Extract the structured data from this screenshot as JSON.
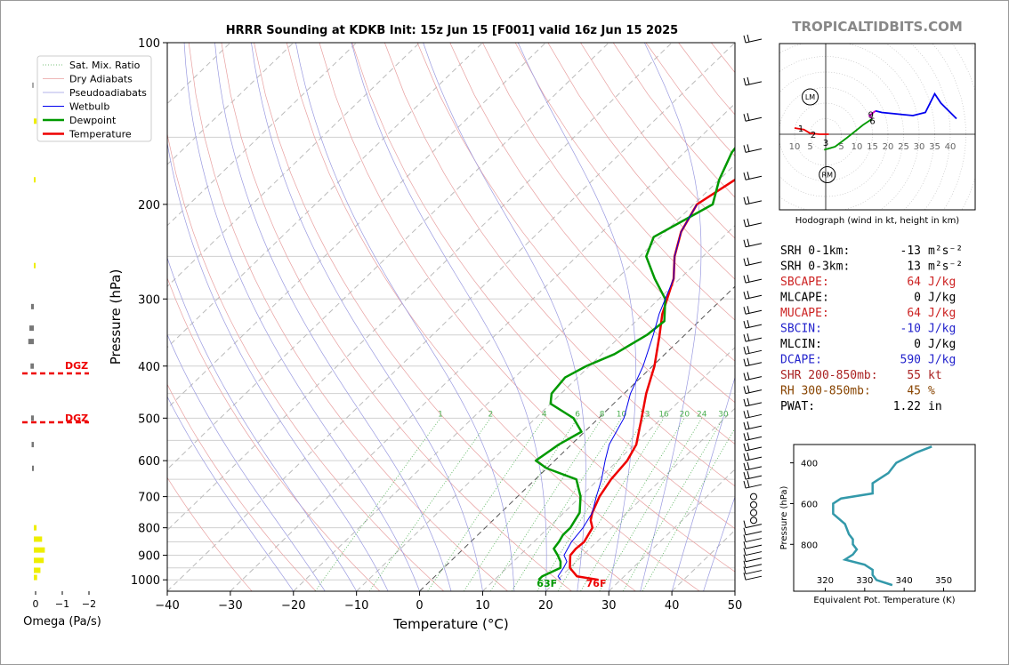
{
  "title": "HRRR Sounding at KDKB Init: 15z Jun 15 [F001] valid 16z Jun 15 2025",
  "watermark": "TROPICALTIDBITS.COM",
  "chart_data": [
    {
      "type": "line",
      "name": "skew-t",
      "xlabel": "Temperature (°C)",
      "ylabel": "Pressure (hPa)",
      "xlim": [
        -40,
        50
      ],
      "ylim": [
        1050,
        100
      ],
      "y_scale": "log",
      "xticks": [
        "−40",
        "−30",
        "−20",
        "−10",
        "0",
        "10",
        "20",
        "30",
        "40",
        "50"
      ],
      "yticks": [
        "100",
        "200",
        "300",
        "400",
        "500",
        "600",
        "700",
        "800",
        "900",
        "1000"
      ],
      "legend_position": "top-left",
      "legend": [
        "Sat. Mix. Ratio",
        "Dry Adiabats",
        "Pseudoadiabats",
        "Wetbulb",
        "Dewpoint",
        "Temperature"
      ],
      "mixing_ratio_labels": [
        "1",
        "2",
        "4",
        "6",
        "8",
        "10",
        "13",
        "16",
        "20",
        "24",
        "30",
        "36"
      ],
      "surface_temperature_label": "76F",
      "surface_dewpoint_label": "63F",
      "series": [
        {
          "name": "Temperature",
          "color": "#ee0000",
          "points": [
            [
              1000,
              26.5
            ],
            [
              985,
              22.5
            ],
            [
              950,
              20
            ],
            [
              925,
              19
            ],
            [
              900,
              18
            ],
            [
              875,
              17.8
            ],
            [
              850,
              18
            ],
            [
              825,
              17.5
            ],
            [
              800,
              17
            ],
            [
              775,
              15.5
            ],
            [
              750,
              14.5
            ],
            [
              700,
              13
            ],
            [
              650,
              12
            ],
            [
              600,
              11.5
            ],
            [
              560,
              10.3
            ],
            [
              500,
              6.8
            ],
            [
              450,
              3.5
            ],
            [
              400,
              0.3
            ],
            [
              350,
              -4
            ],
            [
              320,
              -7
            ],
            [
              300,
              -8.7
            ],
            [
              275,
              -11
            ],
            [
              250,
              -14.5
            ],
            [
              225,
              -17.5
            ],
            [
              200,
              -19.5
            ],
            [
              180,
              -17.5
            ],
            [
              170,
              -15.8
            ],
            [
              150,
              -11.5
            ],
            [
              130,
              -7.5
            ],
            [
              115,
              -5
            ],
            [
              100,
              -3
            ]
          ]
        },
        {
          "name": "Dewpoint",
          "color": "#009900",
          "points": [
            [
              1000,
              17
            ],
            [
              985,
              17
            ],
            [
              950,
              18.5
            ],
            [
              925,
              17.5
            ],
            [
              900,
              16
            ],
            [
              875,
              14.3
            ],
            [
              850,
              14
            ],
            [
              825,
              13.5
            ],
            [
              800,
              13.5
            ],
            [
              775,
              13
            ],
            [
              750,
              12.5
            ],
            [
              700,
              10
            ],
            [
              650,
              6.5
            ],
            [
              620,
              0
            ],
            [
              600,
              -3
            ],
            [
              560,
              -2
            ],
            [
              530,
              -0.5
            ],
            [
              500,
              -4
            ],
            [
              470,
              -10
            ],
            [
              450,
              -11.5
            ],
            [
              420,
              -12
            ],
            [
              400,
              -10.5
            ],
            [
              380,
              -8
            ],
            [
              350,
              -6
            ],
            [
              330,
              -5.5
            ],
            [
              300,
              -9
            ],
            [
              275,
              -14
            ],
            [
              250,
              -19
            ],
            [
              230,
              -21
            ],
            [
              200,
              -17
            ],
            [
              180,
              -20
            ],
            [
              160,
              -22.5
            ],
            [
              130,
              -24.5
            ],
            [
              115,
              -26
            ],
            [
              100,
              -27.5
            ]
          ]
        },
        {
          "name": "Wetbulb",
          "color": "#0000ee",
          "points": [
            [
              1000,
              20.5
            ],
            [
              985,
              19.5
            ],
            [
              950,
              19
            ],
            [
              925,
              18.5
            ],
            [
              900,
              17
            ],
            [
              875,
              16.5
            ],
            [
              850,
              16
            ],
            [
              800,
              15.5
            ],
            [
              750,
              14.5
            ],
            [
              700,
              12.5
            ],
            [
              650,
              10.5
            ],
            [
              600,
              8
            ],
            [
              560,
              6
            ],
            [
              500,
              4
            ],
            [
              450,
              1
            ],
            [
              400,
              -1.5
            ],
            [
              350,
              -5
            ],
            [
              320,
              -7.5
            ],
            [
              300,
              -9
            ],
            [
              275,
              -11
            ],
            [
              250,
              -14.5
            ],
            [
              225,
              -17.5
            ],
            [
              200,
              -19.5
            ]
          ]
        }
      ]
    },
    {
      "type": "line",
      "name": "hodograph",
      "xlabel": "Hodograph (wind in kt, height in km)",
      "ring_labels": [
        "10",
        "5",
        "5",
        "10",
        "15",
        "20",
        "25",
        "30",
        "35",
        "40"
      ],
      "markers": [
        "LM",
        "RM"
      ],
      "height_labels": [
        "1",
        "2",
        "3",
        "6",
        "9"
      ],
      "series": [
        {
          "name": "0-1km",
          "color": "#ee0000",
          "points": [
            [
              -10,
              2
            ],
            [
              -7,
              1.5
            ],
            [
              -5,
              0.3
            ]
          ]
        },
        {
          "name": "1-3km",
          "color": "#ee0000",
          "points": [
            [
              -5,
              0.3
            ],
            [
              -2,
              0
            ],
            [
              1,
              0
            ]
          ]
        },
        {
          "name": "3-6km",
          "color": "#009900",
          "points": [
            [
              -0.5,
              -5
            ],
            [
              3,
              -4
            ],
            [
              7,
              -1
            ],
            [
              12,
              3
            ],
            [
              15,
              5
            ]
          ]
        },
        {
          "name": "6-9km",
          "color": "#cc00cc",
          "points": [
            [
              15,
              5
            ],
            [
              14,
              6
            ],
            [
              16,
              7.5
            ]
          ]
        },
        {
          "name": "9+km",
          "color": "#0000ee",
          "points": [
            [
              16,
              7.5
            ],
            [
              18,
              7
            ],
            [
              23,
              6.5
            ],
            [
              28,
              6
            ],
            [
              32,
              7
            ],
            [
              35,
              13
            ],
            [
              37,
              10
            ],
            [
              42,
              5
            ]
          ]
        }
      ]
    },
    {
      "type": "line",
      "name": "theta-e",
      "xlabel": "Equivalent Pot. Temperature (K)",
      "ylabel": "Pressure (hPa)",
      "xticks": [
        "320",
        "330",
        "340",
        "350"
      ],
      "yticks": [
        "400",
        "600",
        "800"
      ],
      "color": "#3399aa",
      "points": [
        [
          1000,
          337
        ],
        [
          975,
          333
        ],
        [
          950,
          332
        ],
        [
          925,
          332
        ],
        [
          900,
          330
        ],
        [
          875,
          325
        ],
        [
          850,
          327
        ],
        [
          825,
          328
        ],
        [
          800,
          327
        ],
        [
          775,
          327
        ],
        [
          750,
          326
        ],
        [
          700,
          325
        ],
        [
          650,
          322
        ],
        [
          600,
          322
        ],
        [
          575,
          324
        ],
        [
          550,
          332
        ],
        [
          500,
          332
        ],
        [
          450,
          336
        ],
        [
          400,
          338
        ],
        [
          350,
          343
        ],
        [
          320,
          347
        ]
      ]
    },
    {
      "type": "bar",
      "name": "omega",
      "xlabel": "Omega (Pa/s)",
      "xticks": [
        "0",
        "−1",
        "−2"
      ],
      "dgz_label": "DGZ"
    }
  ],
  "indices": [
    {
      "label": "SRH 0-1km:",
      "value": "-13",
      "unit": "m²s⁻²",
      "color": "#000000"
    },
    {
      "label": "SRH 0-3km:",
      "value": "13",
      "unit": "m²s⁻²",
      "color": "#000000"
    },
    {
      "label": "SBCAPE:",
      "value": "64",
      "unit": "J/kg",
      "color": "#cc2222"
    },
    {
      "label": "MLCAPE:",
      "value": "0",
      "unit": "J/kg",
      "color": "#000000"
    },
    {
      "label": "MUCAPE:",
      "value": "64",
      "unit": "J/kg",
      "color": "#cc2222"
    },
    {
      "label": "SBCIN:",
      "value": "-10",
      "unit": "J/kg",
      "color": "#2222cc"
    },
    {
      "label": "MLCIN:",
      "value": "0",
      "unit": "J/kg",
      "color": "#000000"
    },
    {
      "label": "DCAPE:",
      "value": "590",
      "unit": "J/kg",
      "color": "#2222cc"
    },
    {
      "label": "SHR 200-850mb:",
      "value": "55",
      "unit": "kt",
      "color": "#aa2222"
    },
    {
      "label": "RH 300-850mb:",
      "value": "45",
      "unit": "%",
      "color": "#884400"
    },
    {
      "label": "PWAT:",
      "value": "1.22",
      "unit": "in",
      "color": "#000000"
    }
  ]
}
